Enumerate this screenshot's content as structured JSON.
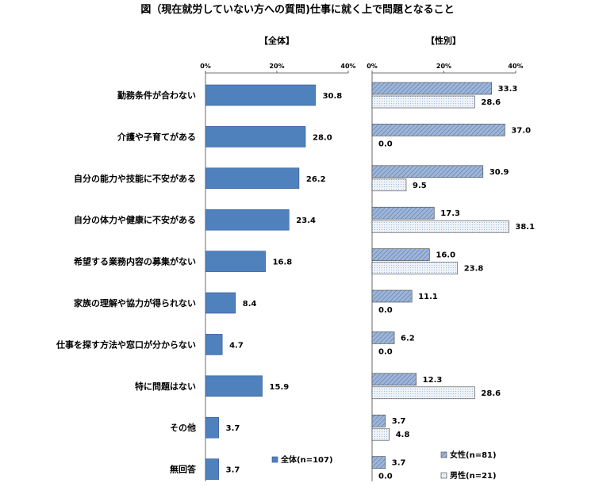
{
  "chart_data": {
    "type": "bar",
    "orientation": "horizontal",
    "title": "図（現在就労していない方への質問)仕事に就く上で問題となること",
    "unit": "%",
    "categories": [
      "勤務条件が合わない",
      "介護や子育てがある",
      "自分の能力や技能に不安がある",
      "自分の体力や健康に不安がある",
      "希望する業務内容の募集がない",
      "家族の理解や協力が得られない",
      "仕事を探す方法や窓口が分からない",
      "特に問題はない",
      "その他",
      "無回答"
    ],
    "panels": [
      {
        "title": "【全体】",
        "xlim": [
          0,
          40
        ],
        "ticks": [
          "0%",
          "20%",
          "40%"
        ],
        "legend_position": "bottom-right",
        "series": [
          {
            "name": "全体(n=107)",
            "color": "#4f81bd",
            "values": [
              30.8,
              28.0,
              26.2,
              23.4,
              16.8,
              8.4,
              4.7,
              15.9,
              3.7,
              3.7
            ]
          }
        ]
      },
      {
        "title": "【性別】",
        "xlim": [
          0,
          40
        ],
        "ticks": [
          "0%",
          "20%",
          "40%"
        ],
        "legend_position": "bottom-right",
        "series": [
          {
            "name": "女性(n=81)",
            "color": "#8ea9cf",
            "pattern": "diagonal-hatch",
            "values": [
              33.3,
              37.0,
              30.9,
              17.3,
              16.0,
              11.1,
              6.2,
              12.3,
              3.7,
              3.7
            ]
          },
          {
            "name": "男性(n=21)",
            "color": "#dce6f2",
            "pattern": "dots",
            "values": [
              28.6,
              0.0,
              9.5,
              38.1,
              23.8,
              0.0,
              0.0,
              28.6,
              4.8,
              0.0
            ]
          }
        ]
      }
    ]
  }
}
